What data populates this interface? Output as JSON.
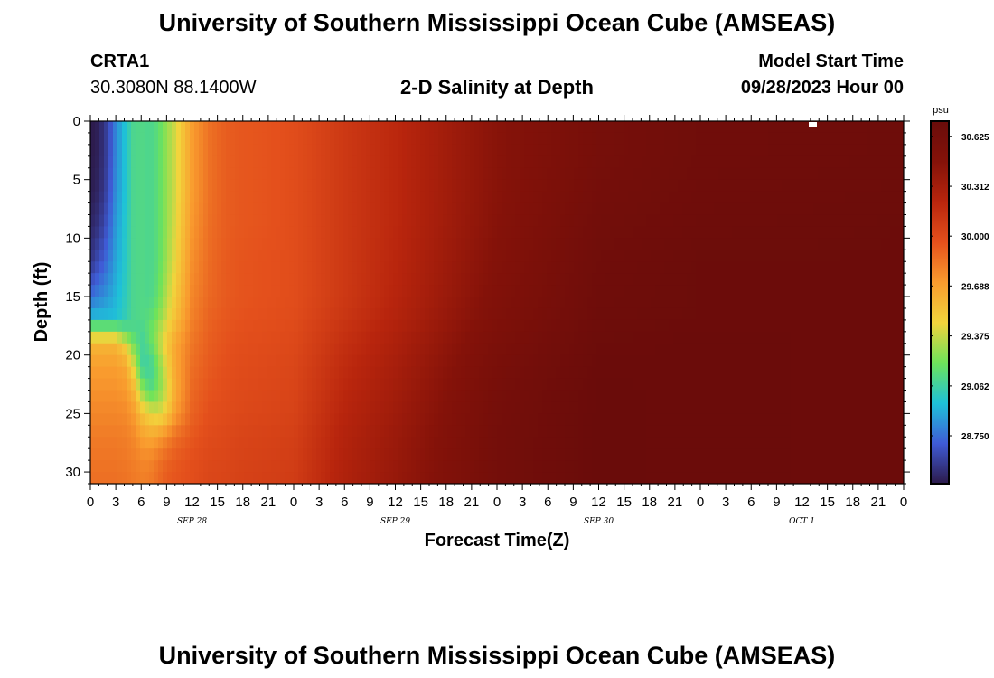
{
  "header": {
    "title": "University of Southern Mississippi Ocean Cube (AMSEAS)",
    "station_id": "CRTA1",
    "coordinates": "30.3080N  88.1400W",
    "subtitle": "2-D Salinity at Depth",
    "model_start_label": "Model Start Time",
    "model_start_value": "09/28/2023 Hour 00"
  },
  "footer": {
    "title": "University of Southern Mississippi Ocean Cube (AMSEAS)"
  },
  "chart_data": {
    "type": "heatmap",
    "title": "2-D Salinity at Depth",
    "xlabel": "Forecast Time(Z)",
    "ylabel": "Depth (ft)",
    "x_tick_labels": [
      "0",
      "3",
      "6",
      "9",
      "12",
      "15",
      "18",
      "21",
      "0",
      "3",
      "6",
      "9",
      "12",
      "15",
      "18",
      "21",
      "0",
      "3",
      "6",
      "9",
      "12",
      "15",
      "18",
      "21",
      "0",
      "3",
      "6",
      "9",
      "12",
      "15",
      "18",
      "21",
      "0"
    ],
    "x_range_hours": [
      0,
      96
    ],
    "date_labels": [
      {
        "label": "SEP 28",
        "hour": 12
      },
      {
        "label": "SEP 29",
        "hour": 36
      },
      {
        "label": "SEP 30",
        "hour": 60
      },
      {
        "label": "OCT 1",
        "hour": 84
      }
    ],
    "y_tick_labels": [
      "0",
      "5",
      "10",
      "15",
      "20",
      "25",
      "30"
    ],
    "y_range_ft": [
      0,
      31
    ],
    "colorbar": {
      "unit": "psu",
      "ticks": [
        "30.625",
        "30.312",
        "30.000",
        "29.688",
        "29.375",
        "29.062",
        "28.750"
      ],
      "tick_values": [
        30.625,
        30.312,
        30.0,
        29.688,
        29.375,
        29.062,
        28.75
      ],
      "range": [
        28.45,
        30.72
      ],
      "colors": [
        "#2c1a4a",
        "#3f5bd6",
        "#1ec2d8",
        "#6ee35a",
        "#f2d43c",
        "#f99b2e",
        "#e4501c",
        "#b8250d",
        "#841209",
        "#6a0c0a"
      ]
    },
    "time_hours": [
      0,
      1,
      2,
      3,
      4,
      5,
      6,
      7,
      8,
      9,
      10,
      12,
      14,
      16,
      18,
      20,
      24,
      30,
      36,
      48,
      60,
      72,
      96
    ],
    "depths_ft": [
      0,
      3,
      6,
      9,
      12,
      15,
      17,
      18,
      19.5,
      21,
      23,
      25,
      27,
      29,
      31
    ],
    "salinity_psu": [
      [
        28.45,
        28.48,
        28.6,
        28.8,
        28.95,
        29.1,
        29.12,
        29.1,
        29.15,
        29.28,
        29.4,
        29.7,
        29.85,
        29.92,
        29.94,
        29.95,
        29.98,
        30.1,
        30.2,
        30.45,
        30.6,
        30.66,
        30.68
      ],
      [
        28.45,
        28.48,
        28.6,
        28.8,
        28.95,
        29.1,
        29.12,
        29.1,
        29.15,
        29.28,
        29.4,
        29.7,
        29.85,
        29.92,
        29.94,
        29.95,
        29.98,
        30.1,
        30.2,
        30.45,
        30.6,
        30.66,
        30.68
      ],
      [
        28.46,
        28.5,
        28.62,
        28.82,
        28.95,
        29.1,
        29.12,
        29.1,
        29.15,
        29.28,
        29.4,
        29.7,
        29.85,
        29.92,
        29.94,
        29.95,
        29.98,
        30.1,
        30.2,
        30.45,
        30.62,
        30.67,
        30.69
      ],
      [
        28.5,
        28.55,
        28.68,
        28.85,
        28.97,
        29.1,
        29.12,
        29.1,
        29.15,
        29.28,
        29.42,
        29.72,
        29.86,
        29.92,
        29.94,
        29.95,
        29.98,
        30.1,
        30.2,
        30.46,
        30.64,
        30.68,
        30.7
      ],
      [
        28.55,
        28.65,
        28.75,
        28.88,
        28.98,
        29.1,
        29.12,
        29.1,
        29.15,
        29.3,
        29.45,
        29.75,
        29.87,
        29.93,
        29.95,
        29.96,
        29.98,
        30.1,
        30.21,
        30.48,
        30.66,
        30.7,
        30.7
      ],
      [
        28.75,
        28.8,
        28.85,
        28.92,
        29.0,
        29.1,
        29.12,
        29.1,
        29.18,
        29.35,
        29.5,
        29.78,
        29.88,
        29.93,
        29.95,
        29.96,
        29.98,
        30.1,
        30.22,
        30.5,
        30.67,
        30.7,
        30.7
      ],
      [
        28.95,
        28.95,
        28.95,
        28.95,
        29.02,
        29.1,
        29.12,
        29.15,
        29.25,
        29.4,
        29.55,
        29.8,
        29.9,
        29.94,
        29.96,
        29.97,
        29.99,
        30.12,
        30.24,
        30.52,
        30.68,
        30.7,
        30.7
      ],
      [
        29.35,
        29.35,
        29.35,
        29.35,
        29.2,
        29.12,
        29.08,
        29.18,
        29.32,
        29.48,
        29.62,
        29.82,
        29.91,
        29.95,
        29.97,
        29.98,
        30.0,
        30.14,
        30.26,
        30.54,
        30.69,
        30.71,
        30.7
      ],
      [
        29.62,
        29.62,
        29.62,
        29.62,
        29.52,
        29.28,
        29.08,
        29.12,
        29.3,
        29.5,
        29.66,
        29.84,
        29.92,
        29.96,
        29.98,
        29.99,
        30.01,
        30.16,
        30.28,
        30.56,
        30.7,
        30.71,
        30.7
      ],
      [
        29.7,
        29.7,
        29.7,
        29.7,
        29.66,
        29.45,
        29.08,
        29.05,
        29.22,
        29.45,
        29.66,
        29.86,
        29.93,
        29.97,
        29.99,
        30.0,
        30.02,
        30.18,
        30.3,
        30.58,
        30.71,
        30.71,
        30.7
      ],
      [
        29.74,
        29.74,
        29.74,
        29.74,
        29.72,
        29.62,
        29.3,
        29.12,
        29.22,
        29.4,
        29.64,
        29.88,
        29.95,
        29.98,
        30.0,
        30.01,
        30.03,
        30.2,
        30.32,
        30.6,
        30.72,
        30.71,
        30.7
      ],
      [
        29.78,
        29.78,
        29.78,
        29.78,
        29.77,
        29.72,
        29.55,
        29.45,
        29.4,
        29.5,
        29.7,
        29.9,
        29.97,
        29.99,
        30.01,
        30.02,
        30.04,
        30.22,
        30.34,
        30.61,
        30.72,
        30.71,
        30.7
      ],
      [
        29.82,
        29.82,
        29.82,
        29.82,
        29.81,
        29.78,
        29.7,
        29.66,
        29.7,
        29.78,
        29.86,
        29.94,
        29.99,
        30.01,
        30.03,
        30.04,
        30.06,
        30.24,
        30.36,
        30.62,
        30.72,
        30.71,
        30.7
      ],
      [
        29.84,
        29.84,
        29.84,
        29.84,
        29.83,
        29.81,
        29.78,
        29.78,
        29.84,
        29.9,
        29.93,
        29.97,
        30.01,
        30.02,
        30.04,
        30.05,
        30.07,
        30.25,
        30.37,
        30.62,
        30.72,
        30.71,
        30.7
      ],
      [
        29.86,
        29.86,
        29.86,
        29.86,
        29.85,
        29.83,
        29.81,
        29.82,
        29.88,
        29.93,
        29.95,
        29.98,
        30.02,
        30.03,
        30.05,
        30.06,
        30.08,
        30.26,
        30.38,
        30.62,
        30.72,
        30.71,
        30.7
      ]
    ]
  }
}
